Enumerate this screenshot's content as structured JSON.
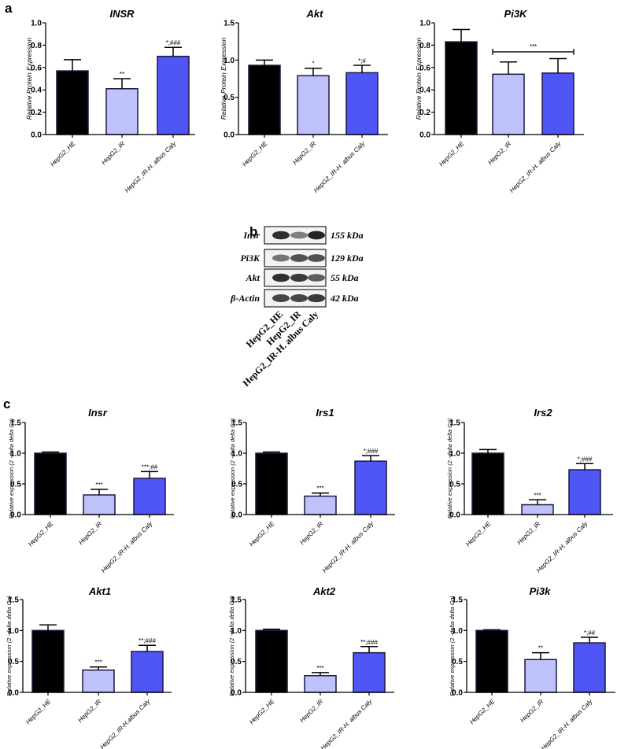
{
  "panel_letters": {
    "a": "a",
    "b": "b",
    "c": "c"
  },
  "colors": {
    "HepG2_HE": "#000000",
    "HepG2_IR": "#bfc1fb",
    "HepG2_IR-H. albus Caly": "#5055f5",
    "edge": "#1a1a40"
  },
  "chart_data": [
    {
      "id": "a-insr",
      "type": "bar",
      "title": "INSR",
      "ylabel": "Relative Protein Expression",
      "ylim": [
        0,
        1.0
      ],
      "yticks": [
        "0.0",
        "0.2",
        "0.4",
        "0.6",
        "0.8",
        "1.0"
      ],
      "categories": [
        "HepG2_HE",
        "HepG2_IR",
        "HepG2_IR-H. albus Caly"
      ],
      "values": [
        0.57,
        0.41,
        0.7
      ],
      "errors": [
        0.1,
        0.09,
        0.08
      ],
      "annotations": [
        "",
        "**",
        "*;###"
      ]
    },
    {
      "id": "a-akt",
      "type": "bar",
      "title": "Akt",
      "ylabel": "Relative Protein Expression",
      "ylim": [
        0,
        1.5
      ],
      "yticks": [
        "0.0",
        "0.5",
        "1.0",
        "1.5"
      ],
      "categories": [
        "HepG2_HE",
        "HepG2_IR",
        "HepG2_IR-H. albus Caly"
      ],
      "values": [
        0.93,
        0.79,
        0.83
      ],
      "errors": [
        0.07,
        0.1,
        0.1
      ],
      "annotations": [
        "",
        "*",
        "*;#"
      ]
    },
    {
      "id": "a-pi3k",
      "type": "bar",
      "title": "Pi3K",
      "ylabel": "Relative Protein Expression",
      "ylim": [
        0,
        1.0
      ],
      "yticks": [
        "0.0",
        "0.2",
        "0.4",
        "0.6",
        "0.8",
        "1.0"
      ],
      "categories": [
        "HepG2_HE",
        "HepG2_IR",
        "HepG2_IR-H. albus Caly"
      ],
      "values": [
        0.83,
        0.54,
        0.55
      ],
      "errors": [
        0.11,
        0.11,
        0.13
      ],
      "annotations": [
        "",
        "",
        ""
      ],
      "bracket": {
        "from": 1,
        "to": 2,
        "y": 0.74,
        "label": "***"
      }
    },
    {
      "id": "c-insr",
      "type": "bar",
      "title": "Insr",
      "ylabel": "Relative expression (2 -delta delta Cq)",
      "ylim": [
        0,
        1.5
      ],
      "yticks": [
        "0.0",
        "0.5",
        "1.0",
        "1.5"
      ],
      "categories": [
        "HepG2_HE",
        "HepG2_IR",
        "HepG2_IR-H. albus Caly"
      ],
      "values": [
        1.0,
        0.32,
        0.59
      ],
      "errors": [
        0.02,
        0.09,
        0.11
      ],
      "annotations": [
        "",
        "***",
        "***;##"
      ]
    },
    {
      "id": "c-irs1",
      "type": "bar",
      "title": "Irs1",
      "ylabel": "Relative expression (2 -delta delta Cq)",
      "ylim": [
        0,
        1.5
      ],
      "yticks": [
        "0.0",
        "0.5",
        "1.0",
        "1.5"
      ],
      "categories": [
        "HepG2_HE",
        "HepG2_IR",
        "HepG2_IR-H. albus Caly"
      ],
      "values": [
        1.0,
        0.3,
        0.87
      ],
      "errors": [
        0.02,
        0.05,
        0.09
      ],
      "annotations": [
        "",
        "***",
        "*;###"
      ]
    },
    {
      "id": "c-irs2",
      "type": "bar",
      "title": "Irs2",
      "ylabel": "Relative expression (2 -delta delta Cq)",
      "ylim": [
        0,
        1.5
      ],
      "yticks": [
        "0.0",
        "0.5",
        "1.0",
        "1.5"
      ],
      "categories": [
        "HepG2_HE",
        "HepG2_IR",
        "HepG2_IR-H. albus Caly"
      ],
      "values": [
        1.0,
        0.16,
        0.73
      ],
      "errors": [
        0.06,
        0.08,
        0.1
      ],
      "annotations": [
        "",
        "***",
        "*;###"
      ]
    },
    {
      "id": "c-akt1",
      "type": "bar",
      "title": "Akt1",
      "ylabel": "Relative expression (2 -delta delta Cq)",
      "ylim": [
        0,
        1.5
      ],
      "yticks": [
        "0.0",
        "0.5",
        "1.0",
        "1.5"
      ],
      "categories": [
        "HepG2_HE",
        "HepG2_IR",
        "HepG2_IR-H.albus Caly"
      ],
      "values": [
        1.0,
        0.36,
        0.66
      ],
      "errors": [
        0.09,
        0.05,
        0.1
      ],
      "annotations": [
        "",
        "***",
        "**;###"
      ]
    },
    {
      "id": "c-akt2",
      "type": "bar",
      "title": "Akt2",
      "ylabel": "Relative expression (2 -delta delta Cq)",
      "ylim": [
        0,
        1.5
      ],
      "yticks": [
        "0.0",
        "0.5",
        "1.0",
        "1.5"
      ],
      "categories": [
        "HepG2_HE",
        "HepG2_IR",
        "HepG2_IR-H. albus Caly"
      ],
      "values": [
        1.0,
        0.27,
        0.64
      ],
      "errors": [
        0.02,
        0.05,
        0.1
      ],
      "annotations": [
        "",
        "***",
        "**;###"
      ]
    },
    {
      "id": "c-pi3k",
      "type": "bar",
      "title": "Pi3k",
      "ylabel": "Relative expression (2 -delta delta Cq)",
      "ylim": [
        0,
        1.5
      ],
      "yticks": [
        "0.0",
        "0.5",
        "1.0",
        "1.5"
      ],
      "categories": [
        "HepG2_HE",
        "HepG2_IR",
        "HepG2_IR-H. albus Caly"
      ],
      "values": [
        1.0,
        0.53,
        0.8
      ],
      "errors": [
        0.01,
        0.11,
        0.09
      ],
      "annotations": [
        "",
        "**",
        "*;##"
      ]
    }
  ],
  "western_blot": {
    "rows": [
      {
        "protein": "Insr",
        "size": "155 kDa",
        "intensity": [
          0.9,
          0.55,
          0.95
        ]
      },
      {
        "protein": "Pi3K",
        "size": "129 kDa",
        "intensity": [
          0.6,
          0.75,
          0.75
        ]
      },
      {
        "protein": "Akt",
        "size": "55 kDa",
        "intensity": [
          0.9,
          0.85,
          0.7
        ]
      },
      {
        "protein": "β-Actin",
        "size": "42 kDa",
        "intensity": [
          0.8,
          0.8,
          0.85
        ]
      }
    ],
    "lanes": [
      "HepG2_HE",
      "HepG2_IR",
      "HepG2_IR-H. albus Caly"
    ]
  }
}
